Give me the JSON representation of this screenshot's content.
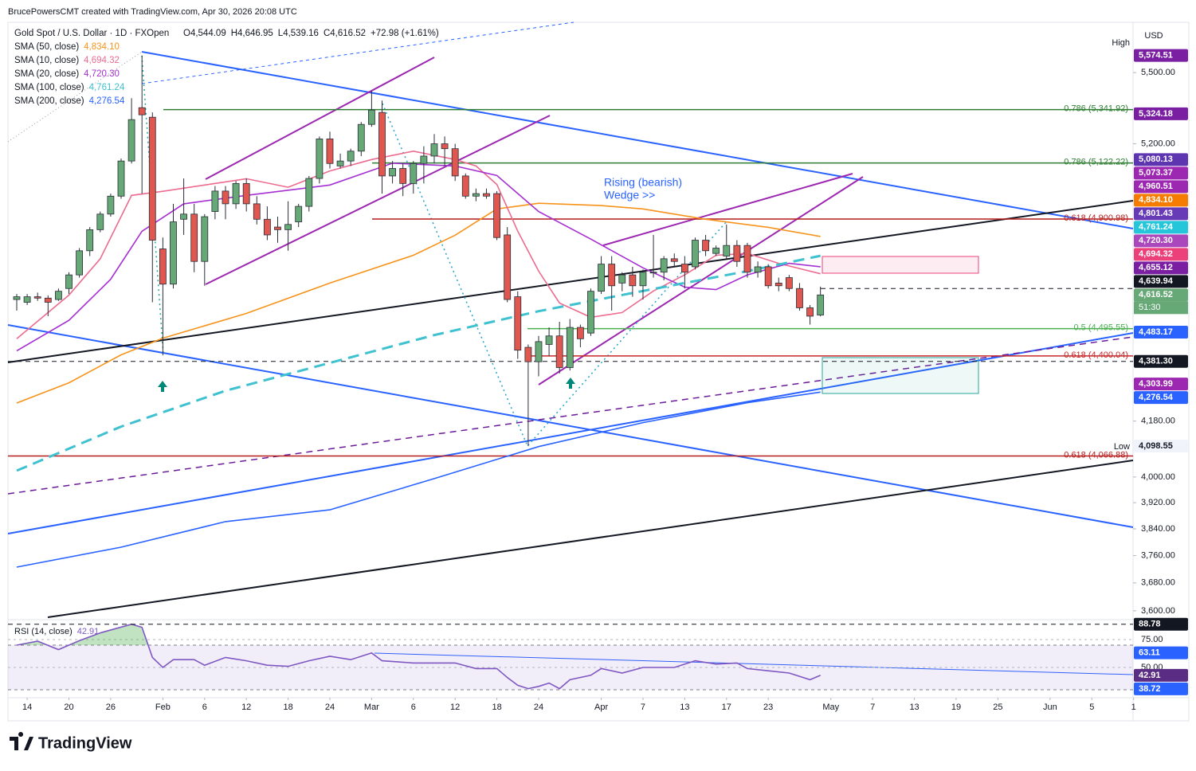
{
  "header": {
    "attribution": "BrucePowersCMT created with TradingView.com, Apr 30, 2026 20:08 UTC",
    "symbol": "Gold Spot / U.S. Dollar · 1D · FXOpen",
    "ohlc": [
      "O4,544.09",
      "H4,646.95",
      "L4,539.16",
      "C4,616.52",
      "+72.98 (+1.61%)"
    ],
    "currency": "USD",
    "high_label": "High",
    "low_label": "Low"
  },
  "footer": {
    "brand": "TradingView"
  },
  "chart_data": {
    "type": "candlestick",
    "log_scale": true,
    "xlim": [
      -0.84,
      106.95
    ],
    "ylim": [
      3575,
      5722
    ],
    "xticks": [
      {
        "value": 1,
        "label": "14"
      },
      {
        "value": 5,
        "label": "20"
      },
      {
        "value": 9,
        "label": "26"
      },
      {
        "value": 14,
        "label": "Feb"
      },
      {
        "value": 18,
        "label": "6"
      },
      {
        "value": 22,
        "label": "12"
      },
      {
        "value": 26,
        "label": "18"
      },
      {
        "value": 30,
        "label": "24"
      },
      {
        "value": 34,
        "label": "Mar"
      },
      {
        "value": 38,
        "label": "6"
      },
      {
        "value": 42,
        "label": "12"
      },
      {
        "value": 46,
        "label": "18"
      },
      {
        "value": 50,
        "label": "24"
      },
      {
        "value": 56,
        "label": "Apr"
      },
      {
        "value": 60,
        "label": "7"
      },
      {
        "value": 64,
        "label": "13"
      },
      {
        "value": 68,
        "label": "17"
      },
      {
        "value": 72,
        "label": "23"
      },
      {
        "value": 78,
        "label": "May"
      },
      {
        "value": 82,
        "label": "7"
      },
      {
        "value": 86,
        "label": "13"
      },
      {
        "value": 90,
        "label": "19"
      },
      {
        "value": 94,
        "label": "25"
      },
      {
        "value": 99,
        "label": "Jun"
      },
      {
        "value": 103,
        "label": "5"
      },
      {
        "value": 107,
        "label": "1"
      }
    ],
    "yticks": [
      {
        "value": 5500,
        "label": "5,500.00"
      },
      {
        "value": 5200,
        "label": "5,200.00"
      },
      {
        "value": 4180,
        "label": "4,180.00"
      },
      {
        "value": 4000,
        "label": "4,000.00"
      },
      {
        "value": 3920,
        "label": "3,920.00"
      },
      {
        "value": 3840,
        "label": "3,840.00"
      },
      {
        "value": 3760,
        "label": "3,760.00"
      },
      {
        "value": 3680,
        "label": "3,680.00"
      },
      {
        "value": 3600,
        "label": "3,600.00"
      }
    ],
    "candles": {
      "open": [
        4600,
        4590,
        4610,
        4605,
        4600,
        4640,
        4690,
        4780,
        4860,
        4920,
        4990,
        5130,
        5350,
        5310,
        4787,
        4656,
        4900,
        4920,
        4740,
        4930,
        5010,
        4960,
        5040,
        4960,
        4900,
        4870,
        4860,
        4890,
        4950,
        5060,
        5220,
        5110,
        5130,
        5170,
        5280,
        5330,
        5070,
        5100,
        5040,
        5120,
        5150,
        5200,
        5180,
        5070,
        4990,
        5000,
        5000,
        4840,
        4610,
        4430,
        4380,
        4440,
        4470,
        4360,
        4500,
        4480,
        4630,
        4730,
        4660,
        4690,
        4650,
        4700,
        4700,
        4750,
        4730,
        4720,
        4820,
        4770,
        4760,
        4800,
        4800,
        4700,
        4720,
        4660,
        4680,
        4640,
        4570,
        4544.09
      ],
      "high": [
        4620,
        4620,
        4625,
        4615,
        4640,
        4700,
        4790,
        4870,
        4930,
        5000,
        5140,
        5390,
        5574.51,
        5330,
        4830,
        4960,
        5060,
        4960,
        4920,
        5030,
        5030,
        5050,
        5060,
        4990,
        4950,
        4910,
        4970,
        4960,
        5070,
        5230,
        5250,
        5160,
        5180,
        5290,
        5420,
        5380,
        5130,
        5120,
        5130,
        5190,
        5240,
        5230,
        5200,
        5080,
        5020,
        5020,
        5010,
        4870,
        4630,
        4440,
        4470,
        4500,
        4520,
        4530,
        4510,
        4640,
        4760,
        4760,
        4700,
        4720,
        4710,
        4840,
        4760,
        4770,
        4760,
        4830,
        4840,
        4800,
        4880,
        4820,
        4810,
        4740,
        4730,
        4680,
        4690,
        4660,
        4580,
        4646.95
      ],
      "low": [
        4560,
        4580,
        4595,
        4540,
        4595,
        4620,
        4680,
        4760,
        4850,
        4910,
        4980,
        5120,
        5000,
        4590,
        4402,
        4640,
        4840,
        4700,
        4650,
        4900,
        4900,
        4940,
        4930,
        4880,
        4820,
        4810,
        4780,
        4870,
        4930,
        5040,
        5100,
        5100,
        5110,
        5150,
        5270,
        5000,
        5040,
        4990,
        5000,
        5040,
        5120,
        5110,
        5050,
        4980,
        4970,
        4980,
        4820,
        4590,
        4390,
        4098.55,
        4330,
        4400,
        4340,
        4350,
        4430,
        4470,
        4620,
        4560,
        4630,
        4610,
        4600,
        4680,
        4670,
        4720,
        4640,
        4710,
        4760,
        4760,
        4750,
        4720,
        4680,
        4680,
        4640,
        4630,
        4630,
        4560,
        4510,
        4539.16
      ],
      "close": [
        4610,
        4610,
        4605,
        4590,
        4630,
        4690,
        4780,
        4860,
        4920,
        4990,
        5130,
        5300,
        5320,
        4820,
        4656,
        4890,
        4920,
        4740,
        4910,
        5010,
        4960,
        5040,
        4960,
        4900,
        4840,
        4860,
        4880,
        4950,
        5060,
        5220,
        5120,
        5130,
        5170,
        5280,
        5340,
        5070,
        5100,
        5040,
        5120,
        5150,
        5200,
        5180,
        5070,
        4990,
        5000,
        4990,
        4830,
        4600,
        4420,
        4380,
        4450,
        4470,
        4360,
        4500,
        4460,
        4630,
        4730,
        4650,
        4690,
        4650,
        4700,
        4700,
        4750,
        4740,
        4700,
        4820,
        4780,
        4790,
        4800,
        4740,
        4700,
        4720,
        4650,
        4650,
        4640,
        4570,
        4540,
        4616.52
      ],
      "up_color": "#66a876",
      "down_color": "#e0574f"
    },
    "overlays": [
      {
        "name": "SMA (50, close)",
        "legend_value": "4,834.10",
        "color": "#f7931a",
        "x": [
          0,
          5,
          10,
          14,
          22,
          30,
          38,
          42,
          46,
          50,
          56,
          60,
          66,
          72,
          77
        ],
        "values": [
          4240,
          4308,
          4404,
          4462,
          4550,
          4660,
          4763,
          4839,
          4940,
          4962,
          4953,
          4940,
          4900,
          4869,
          4834.1
        ]
      },
      {
        "name": "SMA (10, close)",
        "legend_value": "4,694.32",
        "color": "#ec6b8f",
        "x": [
          0,
          5,
          8,
          11,
          14,
          18,
          22,
          26,
          30,
          34,
          38,
          42,
          44,
          46,
          48,
          50,
          52,
          55,
          58,
          61,
          64,
          67,
          70,
          73,
          77
        ],
        "values": [
          4460,
          4616,
          4750,
          4993,
          5009,
          5034,
          5059,
          5025,
          5090,
          5136,
          5170,
          5136,
          5110,
          5036,
          4854,
          4704,
          4587,
          4536,
          4553,
          4631,
          4690,
          4763,
          4770,
          4733,
          4694.32
        ]
      },
      {
        "name": "SMA (20, close)",
        "legend_value": "4,720.30",
        "color": "#a52fd1",
        "x": [
          0,
          5,
          9,
          12,
          16,
          22,
          30,
          36,
          42,
          46,
          50,
          55,
          60,
          64,
          67,
          70,
          74,
          77
        ],
        "values": [
          4418,
          4525,
          4674,
          4854,
          4960,
          4993,
          5034,
          5121,
          5110,
          5072,
          4930,
          4824,
          4716,
          4645,
          4636,
          4690,
          4733,
          4720.3
        ]
      },
      {
        "name": "SMA (100, close)",
        "legend_value": "4,761.24",
        "color": "#3fc1d0",
        "dashed": true,
        "x": [
          0,
          10,
          20,
          30,
          40,
          50,
          60,
          70,
          77
        ],
        "values": [
          4020,
          4162,
          4281,
          4376,
          4473,
          4558,
          4631,
          4704,
          4761.24
        ]
      },
      {
        "name": "SMA (200, close)",
        "legend_value": "4,276.54",
        "color": "#2962ff",
        "x": [
          0,
          10,
          20,
          30,
          40,
          50,
          60,
          70,
          77
        ],
        "values": [
          3726,
          3785,
          3862,
          3898,
          3995,
          4097,
          4175,
          4241,
          4276.54
        ]
      }
    ],
    "fibs": [
      {
        "label": "0.786 (5,341.92)",
        "value": 5341.92,
        "color": "#2e7d32"
      },
      {
        "label": "0.786 (5,122.22)",
        "value": 5122.22,
        "color": "#2e7d32"
      },
      {
        "label": "0.618 (4,900.98)",
        "value": 4900.98,
        "color": "#b71c1c"
      },
      {
        "label": "0.5 (4,495.55)",
        "value": 4495.55,
        "color": "#4caf50"
      },
      {
        "label": "0.618 (4,400.04)",
        "value": 4400.04,
        "color": "#c62828"
      },
      {
        "label": "0.618 (4,066.88)",
        "value": 4066.88,
        "color": "#b71c1c"
      }
    ],
    "annotation": [
      "Rising (bearish)",
      "Wedge >>"
    ],
    "price_badges": [
      {
        "value": 5574.51,
        "label": "5,574.51",
        "color": "#7b1fa2"
      },
      {
        "value": 5324.18,
        "label": "5,324.18",
        "color": "#7b1fa2"
      },
      {
        "value": 5080.13,
        "label": "5,080.13",
        "color": "#5e35b1"
      },
      {
        "value": 5073.37,
        "label": "5,073.37",
        "color": "#9c27b0"
      },
      {
        "value": 4960.51,
        "label": "4,960.51",
        "color": "#9c27b0"
      },
      {
        "value": 4834.1,
        "label": "4,834.10",
        "color": "#f57c00"
      },
      {
        "value": 4801.43,
        "label": "4,801.43",
        "color": "#673ab7"
      },
      {
        "value": 4761.24,
        "label": "4,761.24",
        "color": "#26c6da"
      },
      {
        "value": 4720.3,
        "label": "4,720.30",
        "color": "#ab47bc"
      },
      {
        "value": 4694.32,
        "label": "4,694.32",
        "color": "#ec407a"
      },
      {
        "value": 4655.12,
        "label": "4,655.12",
        "color": "#7b1fa2"
      },
      {
        "value": 4639.94,
        "label": "4,639.94",
        "color": "#131722"
      },
      {
        "value": 4616.52,
        "label": "4,616.52",
        "color": "#66a876",
        "countdown": "51:30"
      },
      {
        "value": 4483.17,
        "label": "4,483.17",
        "color": "#2962ff"
      },
      {
        "value": 4381.3,
        "label": "4,381.30",
        "color": "#131722"
      },
      {
        "value": 4303.99,
        "label": "4,303.99",
        "color": "#9c27b0"
      },
      {
        "value": 4276.54,
        "label": "4,276.54",
        "color": "#2962ff"
      },
      {
        "value": 4098.55,
        "label": "4,098.55",
        "color": "#f0f3fa"
      }
    ],
    "rsi": {
      "name": "RSI (14, close)",
      "legend_value": "42.91",
      "color": "#7e57c2",
      "ylim": [
        23.57,
        92.86
      ],
      "band": [
        30,
        70
      ],
      "yticks": [
        {
          "value": 75,
          "label": "75.00"
        },
        {
          "value": 50,
          "label": "50.00"
        }
      ],
      "x": [
        0,
        2,
        4,
        6,
        8,
        11,
        12,
        13,
        14,
        15,
        17,
        18,
        20,
        22,
        24,
        26,
        28,
        30,
        32,
        34,
        35,
        38,
        42,
        44,
        46,
        47,
        48,
        49,
        50,
        51,
        52,
        53,
        55,
        56,
        58,
        60,
        63,
        65,
        67,
        69,
        70,
        72,
        74,
        76,
        77
      ],
      "values": [
        70,
        73.6,
        66,
        74,
        81,
        88.78,
        86,
        59,
        50,
        57,
        57,
        52,
        59,
        56,
        52,
        51,
        56,
        60,
        57,
        63,
        56,
        54,
        54,
        49,
        49,
        41,
        34,
        31,
        33,
        36,
        31,
        39,
        43,
        49,
        45,
        50,
        50,
        56,
        53,
        54,
        49,
        47,
        45,
        39,
        42.91
      ],
      "badges": [
        {
          "value": 88.78,
          "label": "88.78",
          "color": "#131722"
        },
        {
          "value": 63.11,
          "label": "63.11",
          "color": "#2962ff"
        },
        {
          "value": 42.91,
          "label": "42.91",
          "color": "#5b2c83"
        },
        {
          "value": 38.72,
          "label": "38.72",
          "color": "#2962ff"
        }
      ]
    }
  }
}
